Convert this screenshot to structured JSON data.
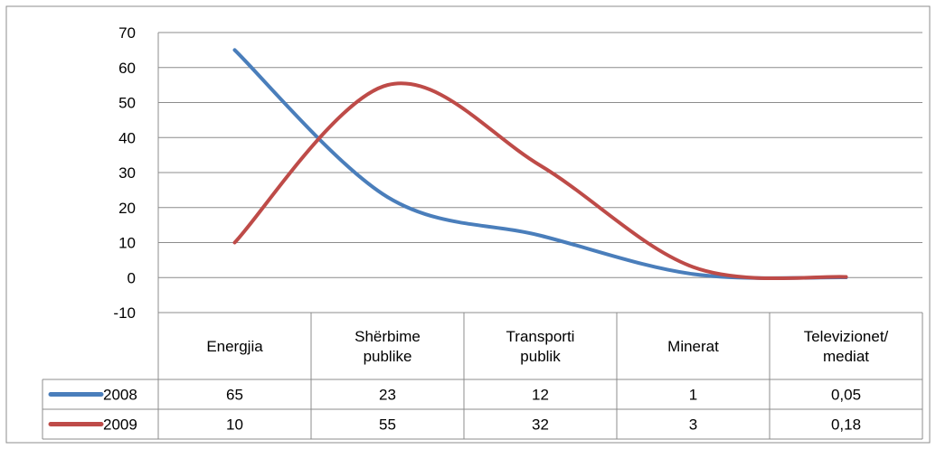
{
  "chart_data": {
    "type": "line",
    "categories": [
      "Energjia",
      "Shërbime\npublike",
      "Transporti\npublik",
      "Minerat",
      "Televizionet/\nmediat"
    ],
    "series": [
      {
        "name": "2008",
        "values": [
          65,
          23,
          12,
          1,
          0.05
        ],
        "labels": [
          "65",
          "23",
          "12",
          "1",
          "0,05"
        ],
        "color": "#4a7ebb"
      },
      {
        "name": "2009",
        "values": [
          10,
          55,
          32,
          3,
          0.18
        ],
        "labels": [
          "10",
          "55",
          "32",
          "3",
          "0,18"
        ],
        "color": "#be4b48"
      }
    ],
    "yticks": [
      "-10",
      "0",
      "10",
      "20",
      "30",
      "40",
      "50",
      "60",
      "70"
    ],
    "ylim": [
      -10,
      70
    ],
    "grid": true,
    "legend": "data-table"
  }
}
